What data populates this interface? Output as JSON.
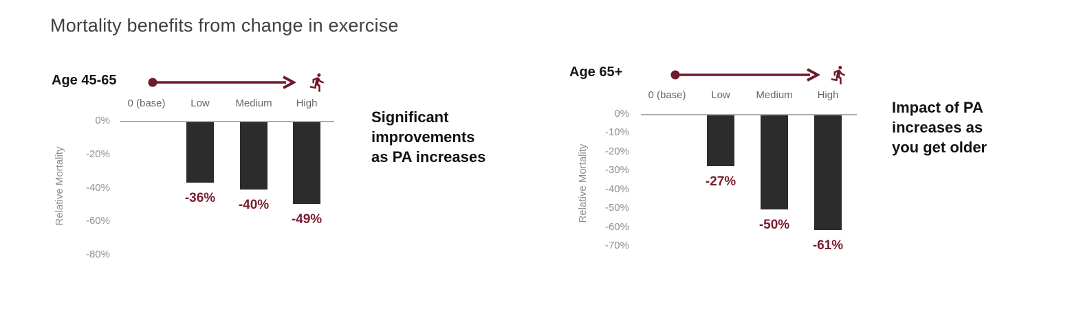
{
  "title": "Mortality benefits from change in exercise",
  "colors": {
    "accent_maroon": "#6E1A2B",
    "value_label_maroon": "#7A1C30",
    "bar_charcoal": "#2C2C2C",
    "axis_gray": "#ABABAB",
    "tick_gray": "#8F8F8F",
    "category_gray": "#666666",
    "title_gray": "#3F3F3F",
    "annotation_black": "#121212"
  },
  "icons": [
    {
      "name": "increase-arrow",
      "description": "right arrow from dot, indicating increasing physical activity"
    },
    {
      "name": "runner-icon",
      "description": "running person glyph"
    }
  ],
  "annotations": [
    {
      "lines": [
        "Significant",
        "improvements",
        "as PA increases"
      ]
    },
    {
      "lines": [
        "Impact of PA",
        "increases as",
        "you get older"
      ]
    }
  ],
  "chart_data": [
    {
      "type": "bar",
      "group_label": "Age 45-65",
      "categories": [
        "0 (base)",
        "Low",
        "Medium",
        "High"
      ],
      "values": [
        0,
        -36,
        -40,
        -49
      ],
      "value_labels": [
        "",
        "-36%",
        "-40%",
        "-49%"
      ],
      "ylabel": "Relative Mortality",
      "xlabel": "",
      "yticks": [
        "0%",
        "-20%",
        "-40%",
        "-60%",
        "-80%"
      ],
      "ylim": [
        -80,
        0
      ],
      "grid": false,
      "legend": false
    },
    {
      "type": "bar",
      "group_label": "Age 65+",
      "categories": [
        "0 (base)",
        "Low",
        "Medium",
        "High"
      ],
      "values": [
        0,
        -27,
        -50,
        -61
      ],
      "value_labels": [
        "",
        "-27%",
        "-50%",
        "-61%"
      ],
      "ylabel": "Relative Mortality",
      "xlabel": "",
      "yticks": [
        "0%",
        "-10%",
        "-20%",
        "-30%",
        "-40%",
        "-50%",
        "-60%",
        "-70%"
      ],
      "ylim": [
        -70,
        0
      ],
      "grid": false,
      "legend": false
    }
  ]
}
